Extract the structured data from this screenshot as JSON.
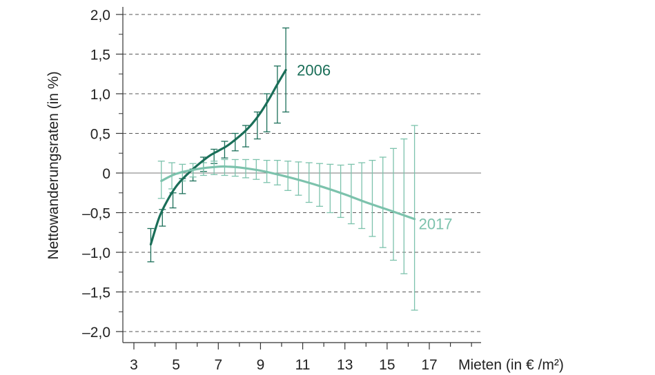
{
  "chart_data": {
    "type": "line",
    "title": "",
    "xlabel": "Mieten (in € /m²)",
    "ylabel": "Nettowanderungsraten (in %)",
    "xlim": [
      2.5,
      19
    ],
    "ylim": [
      -2.2,
      2.05
    ],
    "x_ticks": [
      3,
      5,
      7,
      9,
      11,
      13,
      15,
      17
    ],
    "x_tick_labels": [
      "3",
      "5",
      "7",
      "9",
      "11",
      "13",
      "15",
      "17"
    ],
    "y_ticks": [
      2.0,
      1.5,
      1.0,
      0.5,
      0,
      -0.5,
      -1.0,
      -1.5,
      -2.0
    ],
    "y_tick_labels": [
      "2,0",
      "1,5",
      "1,0",
      "0,5",
      "0",
      "–0,5",
      "–1,0",
      "–1,5",
      "–2,0"
    ],
    "grid": "horizontal dashed",
    "legend": "inline labels at line ends",
    "series": [
      {
        "name": "2006",
        "color": "#1a6e58",
        "x": [
          3.8,
          4.2,
          4.6,
          5.0,
          5.4,
          5.8,
          6.2,
          6.6,
          7.0,
          7.4,
          7.8,
          8.2,
          8.6,
          9.0,
          9.4,
          9.8,
          10.2
        ],
        "y": [
          -0.9,
          -0.56,
          -0.34,
          -0.17,
          -0.05,
          0.05,
          0.14,
          0.22,
          0.28,
          0.34,
          0.42,
          0.51,
          0.62,
          0.76,
          0.93,
          1.12,
          1.3
        ],
        "errorbars": {
          "x": [
            3.8,
            4.35,
            4.85,
            5.3,
            5.8,
            6.3,
            6.8,
            7.3,
            7.8,
            8.3,
            8.85,
            9.3,
            9.8,
            10.2
          ],
          "low": [
            -1.12,
            -0.67,
            -0.44,
            -0.26,
            -0.1,
            0.02,
            0.12,
            0.19,
            0.28,
            0.33,
            0.43,
            0.52,
            0.63,
            0.77
          ],
          "high": [
            -0.7,
            -0.46,
            -0.25,
            -0.07,
            0.05,
            0.2,
            0.3,
            0.4,
            0.5,
            0.6,
            0.77,
            1.0,
            1.35,
            1.83
          ]
        }
      },
      {
        "name": "2017",
        "color": "#7cc2ac",
        "x": [
          4.3,
          5.0,
          6.0,
          7.0,
          7.5,
          8.0,
          9.0,
          10.0,
          11.0,
          12.0,
          13.0,
          14.0,
          15.0,
          16.3
        ],
        "y": [
          -0.1,
          -0.01,
          0.05,
          0.08,
          0.08,
          0.07,
          0.03,
          -0.03,
          -0.1,
          -0.18,
          -0.27,
          -0.37,
          -0.46,
          -0.58
        ],
        "errorbars": {
          "x": [
            4.3,
            4.8,
            5.3,
            5.8,
            6.3,
            6.8,
            7.3,
            7.8,
            8.3,
            8.8,
            9.3,
            9.8,
            10.3,
            10.8,
            11.3,
            11.8,
            12.3,
            12.8,
            13.3,
            13.8,
            14.3,
            14.8,
            15.3,
            15.8,
            16.3
          ],
          "low": [
            -0.32,
            -0.2,
            -0.1,
            -0.05,
            -0.03,
            -0.02,
            -0.03,
            -0.04,
            -0.06,
            -0.08,
            -0.12,
            -0.15,
            -0.22,
            -0.28,
            -0.37,
            -0.42,
            -0.5,
            -0.56,
            -0.64,
            -0.7,
            -0.8,
            -0.94,
            -1.1,
            -1.27,
            -1.73
          ],
          "high": [
            0.15,
            0.13,
            0.11,
            0.12,
            0.13,
            0.15,
            0.17,
            0.17,
            0.17,
            0.17,
            0.16,
            0.16,
            0.15,
            0.14,
            0.13,
            0.12,
            0.11,
            0.1,
            0.11,
            0.13,
            0.16,
            0.2,
            0.31,
            0.43,
            0.6
          ]
        }
      }
    ]
  }
}
